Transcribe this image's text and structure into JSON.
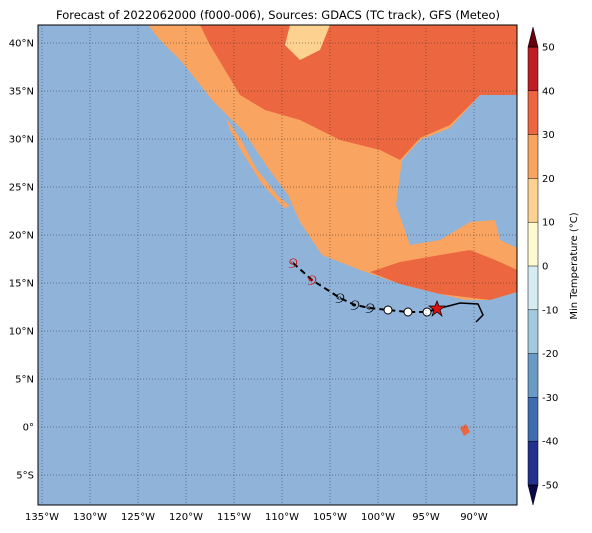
{
  "title": "Forecast of 2022062000 (f000-006), Sources: GDACS (TC track), GFS (Meteo)",
  "map": {
    "lon_ticks": [
      {
        "value": -135,
        "label": "135°W"
      },
      {
        "value": -130,
        "label": "130°W"
      },
      {
        "value": -125,
        "label": "125°W"
      },
      {
        "value": -120,
        "label": "120°W"
      },
      {
        "value": -115,
        "label": "115°W"
      },
      {
        "value": -110,
        "label": "110°W"
      },
      {
        "value": -105,
        "label": "105°W"
      },
      {
        "value": -100,
        "label": "100°W"
      },
      {
        "value": -95,
        "label": "95°W"
      },
      {
        "value": -90,
        "label": "90°W"
      }
    ],
    "lat_ticks": [
      {
        "value": 40,
        "label": "40°N"
      },
      {
        "value": 35,
        "label": "35°N"
      },
      {
        "value": 30,
        "label": "30°N"
      },
      {
        "value": 25,
        "label": "25°N"
      },
      {
        "value": 20,
        "label": "20°N"
      },
      {
        "value": 15,
        "label": "15°N"
      },
      {
        "value": 10,
        "label": "10°N"
      },
      {
        "value": 5,
        "label": "5°N"
      },
      {
        "value": 0,
        "label": "0°"
      },
      {
        "value": -5,
        "label": "5°S"
      }
    ]
  },
  "colorbar": {
    "label": "Min Temperature (°C)",
    "ticks": [
      50,
      40,
      30,
      20,
      10,
      0,
      -10,
      -20,
      -30,
      -40,
      -50
    ],
    "colors": [
      "#c01d26",
      "#ec6640",
      "#f9a561",
      "#fdd291",
      "#fffbd0",
      "#d6ecf2",
      "#a3cbe0",
      "#6a9bc7",
      "#3f6cb0",
      "#23318c"
    ]
  }
}
